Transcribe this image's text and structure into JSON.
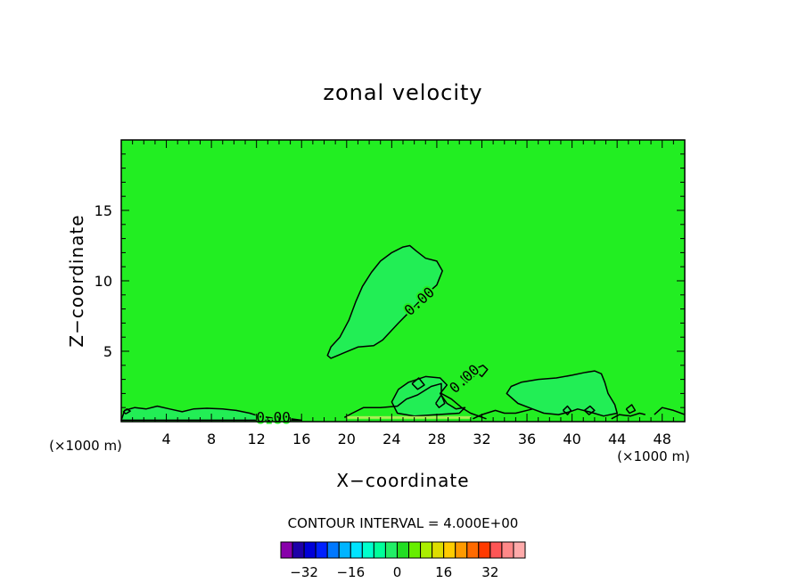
{
  "chart_data": {
    "type": "contour",
    "title": "zonal velocity",
    "xlabel": "X−coordinate",
    "ylabel": "Z−coordinate",
    "x_unit": "(×1000 m)",
    "xlim": [
      0,
      50
    ],
    "ylim": [
      0,
      20
    ],
    "x_ticks": [
      4,
      8,
      12,
      16,
      20,
      24,
      28,
      32,
      36,
      40,
      44,
      48
    ],
    "y_ticks": [
      5,
      10,
      15
    ],
    "background_level_color": "#22ee22",
    "contour_interval_text": "CONTOUR INTERVAL = 4.000E+00",
    "contour_labels": [
      {
        "text": "0.00",
        "x": 26.5,
        "z": 8.5,
        "angle": -42
      },
      {
        "text": "0.00",
        "x": 30.5,
        "z": 3.0,
        "angle": -42
      },
      {
        "text": "0.00",
        "x": 13.5,
        "z": 0.25,
        "angle": 0
      }
    ],
    "regions": [
      {
        "level": "negative",
        "points": [
          [
            18.3,
            4.7
          ],
          [
            18.6,
            5.3
          ],
          [
            19.4,
            6.0
          ],
          [
            20.2,
            7.2
          ],
          [
            20.8,
            8.5
          ],
          [
            21.4,
            9.6
          ],
          [
            22.2,
            10.6
          ],
          [
            23.0,
            11.4
          ],
          [
            24.0,
            12.0
          ],
          [
            25.0,
            12.4
          ],
          [
            25.6,
            12.5
          ],
          [
            26.2,
            12.1
          ],
          [
            27.0,
            11.6
          ],
          [
            28.0,
            11.4
          ],
          [
            28.5,
            10.7
          ],
          [
            28.0,
            9.7
          ],
          [
            27.0,
            9.0
          ],
          [
            25.7,
            7.9
          ],
          [
            24.6,
            7.0
          ],
          [
            23.2,
            5.8
          ],
          [
            22.4,
            5.4
          ],
          [
            21.0,
            5.3
          ],
          [
            19.8,
            4.9
          ],
          [
            18.6,
            4.5
          ]
        ]
      },
      {
        "level": "negative",
        "points": [
          [
            24.0,
            1.4
          ],
          [
            24.6,
            2.3
          ],
          [
            25.5,
            2.8
          ],
          [
            27.0,
            3.2
          ],
          [
            28.3,
            3.1
          ],
          [
            28.9,
            2.6
          ],
          [
            28.3,
            2.0
          ],
          [
            28.9,
            1.3
          ],
          [
            29.7,
            0.9
          ],
          [
            30.5,
            1.0
          ],
          [
            30.0,
            0.6
          ],
          [
            28.0,
            0.5
          ],
          [
            26.0,
            0.4
          ],
          [
            24.5,
            0.6
          ]
        ]
      },
      {
        "level": "negative",
        "points": [
          [
            34.2,
            2.0
          ],
          [
            34.6,
            2.5
          ],
          [
            35.5,
            2.8
          ],
          [
            37.0,
            3.0
          ],
          [
            38.6,
            3.1
          ],
          [
            40.0,
            3.3
          ],
          [
            41.2,
            3.5
          ],
          [
            42.0,
            3.6
          ],
          [
            42.6,
            3.4
          ],
          [
            42.9,
            2.8
          ],
          [
            43.2,
            2.0
          ],
          [
            43.8,
            1.2
          ],
          [
            44.0,
            0.6
          ],
          [
            42.8,
            0.4
          ],
          [
            41.5,
            0.7
          ],
          [
            40.5,
            0.9
          ],
          [
            39.8,
            0.7
          ],
          [
            38.8,
            0.5
          ],
          [
            37.5,
            0.6
          ],
          [
            36.5,
            0.9
          ],
          [
            35.2,
            1.3
          ]
        ]
      },
      {
        "level": "negative",
        "points": [
          [
            0.0,
            0.1
          ],
          [
            0.3,
            0.8
          ],
          [
            1.2,
            1.0
          ],
          [
            2.2,
            0.9
          ],
          [
            3.2,
            1.1
          ],
          [
            4.3,
            0.9
          ],
          [
            5.4,
            0.7
          ],
          [
            6.4,
            0.9
          ],
          [
            7.6,
            0.95
          ],
          [
            9.0,
            0.9
          ],
          [
            10.2,
            0.8
          ],
          [
            11.4,
            0.6
          ],
          [
            12.2,
            0.4
          ],
          [
            13.5,
            0.25
          ],
          [
            15.0,
            0.2
          ],
          [
            16.0,
            0.1
          ]
        ]
      }
    ],
    "contour_lines": [
      [
        [
          19.8,
          0.3
        ],
        [
          20.5,
          0.6
        ],
        [
          21.5,
          1.0
        ],
        [
          23.0,
          1.0
        ],
        [
          24.5,
          1.1
        ],
        [
          25.3,
          1.6
        ],
        [
          26.3,
          1.9
        ],
        [
          27.5,
          2.5
        ],
        [
          28.4,
          2.7
        ],
        [
          28.4,
          2.0
        ],
        [
          29.3,
          1.6
        ],
        [
          30.2,
          1.0
        ],
        [
          31.0,
          0.6
        ],
        [
          32.4,
          0.2
        ]
      ],
      [
        [
          31.2,
          0.2
        ],
        [
          32.0,
          0.5
        ],
        [
          33.2,
          0.8
        ],
        [
          34.0,
          0.6
        ],
        [
          35.0,
          0.6
        ],
        [
          36.5,
          0.9
        ]
      ],
      [
        [
          43.5,
          0.2
        ],
        [
          44.2,
          0.5
        ],
        [
          45.2,
          0.4
        ],
        [
          46.0,
          0.6
        ],
        [
          46.5,
          0.5
        ]
      ],
      [
        [
          47.3,
          0.5
        ],
        [
          48.0,
          1.0
        ],
        [
          49.0,
          0.8
        ],
        [
          50.0,
          0.5
        ]
      ],
      [
        [
          0.4,
          0.55
        ],
        [
          0.8,
          0.75
        ],
        [
          0.5,
          0.9
        ],
        [
          0.2,
          0.7
        ],
        [
          0.4,
          0.55
        ]
      ],
      [
        [
          44.8,
          0.9
        ],
        [
          45.3,
          1.2
        ],
        [
          45.6,
          0.8
        ],
        [
          45.1,
          0.6
        ],
        [
          44.8,
          0.9
        ]
      ],
      [
        [
          39.2,
          0.8
        ],
        [
          39.6,
          1.1
        ],
        [
          39.9,
          0.8
        ],
        [
          39.6,
          0.5
        ],
        [
          39.2,
          0.8
        ]
      ],
      [
        [
          41.1,
          0.8
        ],
        [
          41.6,
          1.1
        ],
        [
          42.0,
          0.8
        ],
        [
          41.5,
          0.5
        ],
        [
          41.1,
          0.8
        ]
      ],
      [
        [
          25.8,
          2.7
        ],
        [
          26.4,
          3.1
        ],
        [
          26.9,
          2.6
        ],
        [
          26.3,
          2.3
        ],
        [
          25.8,
          2.7
        ]
      ],
      [
        [
          27.9,
          1.3
        ],
        [
          28.4,
          1.9
        ],
        [
          28.7,
          1.3
        ],
        [
          28.2,
          1.0
        ],
        [
          27.9,
          1.3
        ]
      ],
      [
        [
          30.1,
          3.2
        ],
        [
          30.8,
          3.6
        ],
        [
          31.4,
          3.3
        ],
        [
          30.7,
          2.8
        ],
        [
          30.1,
          3.2
        ]
      ],
      [
        [
          31.3,
          3.7
        ],
        [
          32.1,
          4.0
        ],
        [
          32.5,
          3.7
        ],
        [
          32.0,
          3.2
        ],
        [
          31.3,
          3.7
        ]
      ]
    ],
    "surface_streak": {
      "x1": 20.0,
      "x2": 31.0,
      "z": 0.2,
      "color": "#aaee55"
    },
    "colorbar": {
      "colors": [
        "#8800aa",
        "#1e00a8",
        "#0000d8",
        "#0020ff",
        "#0078ff",
        "#00b4ff",
        "#00e4ff",
        "#00ffcc",
        "#00ff9a",
        "#22ee66",
        "#22dd22",
        "#66ee00",
        "#aaee00",
        "#dddd00",
        "#ffcc00",
        "#ff9a00",
        "#ff6a00",
        "#ff3a00",
        "#ff5555",
        "#ff8888",
        "#ffaaaa"
      ],
      "tick_labels": [
        "−32",
        "−16",
        "0",
        "16",
        "32"
      ],
      "tick_values": [
        -32,
        -16,
        0,
        16,
        32
      ]
    }
  }
}
